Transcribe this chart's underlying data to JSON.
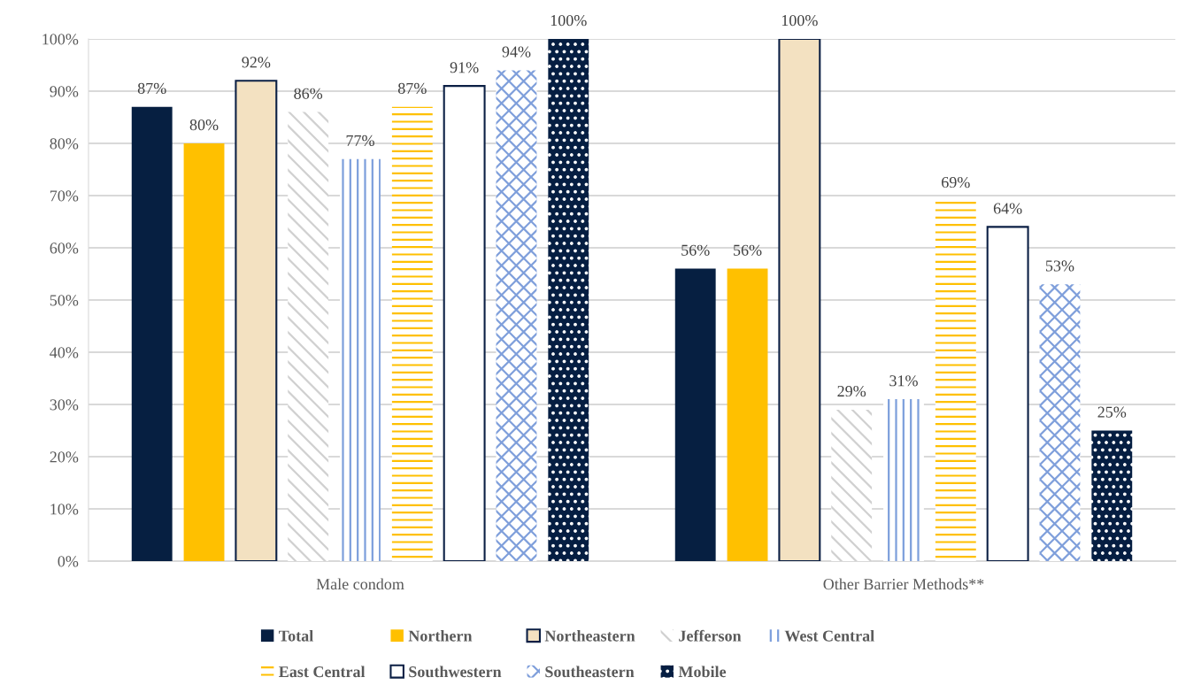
{
  "chart_data": {
    "type": "bar",
    "categories": [
      "Male condom",
      "Other Barrier Methods**"
    ],
    "series": [
      {
        "name": "Total",
        "color": "#061f41",
        "values": [
          87,
          56
        ],
        "value_labels": [
          "87%",
          "56%"
        ]
      },
      {
        "name": "Northern",
        "color": "#ffc000",
        "values": [
          80,
          56
        ],
        "value_labels": [
          "80%",
          "56%"
        ]
      },
      {
        "name": "Northeastern",
        "color": "#f3e1c1",
        "values": [
          92,
          100
        ],
        "value_labels": [
          "92%",
          "100%"
        ]
      },
      {
        "name": "Jefferson",
        "color": "#d0d0d0",
        "values": [
          86,
          29
        ],
        "value_labels": [
          "86%",
          "29%"
        ]
      },
      {
        "name": "West Central",
        "color": "#7d9fdc",
        "values": [
          77,
          31
        ],
        "value_labels": [
          "77%",
          "31%"
        ]
      },
      {
        "name": "East Central",
        "color": "#ffc000",
        "values": [
          87,
          69
        ],
        "value_labels": [
          "87%",
          "69%"
        ]
      },
      {
        "name": "Southwestern",
        "color": "#ffffff",
        "values": [
          91,
          64
        ],
        "value_labels": [
          "91%",
          "64%"
        ]
      },
      {
        "name": "Southeastern",
        "color": "#7f9fdb",
        "values": [
          94,
          53
        ],
        "value_labels": [
          "94%",
          "53%"
        ]
      },
      {
        "name": "Mobile",
        "color": "#051e42",
        "values": [
          100,
          25
        ],
        "value_labels": [
          "100%",
          "25%"
        ]
      }
    ],
    "ylim": [
      0,
      100
    ],
    "yticks": [
      {
        "value": 0,
        "label": "0%"
      },
      {
        "value": 10,
        "label": "10%"
      },
      {
        "value": 20,
        "label": "20%"
      },
      {
        "value": 30,
        "label": "30%"
      },
      {
        "value": 40,
        "label": "40%"
      },
      {
        "value": 50,
        "label": "50%"
      },
      {
        "value": 60,
        "label": "60%"
      },
      {
        "value": 70,
        "label": "70%"
      },
      {
        "value": 80,
        "label": "80%"
      },
      {
        "value": 90,
        "label": "90%"
      },
      {
        "value": 100,
        "label": "100%"
      }
    ],
    "grid": "y",
    "legend": "bottom"
  }
}
